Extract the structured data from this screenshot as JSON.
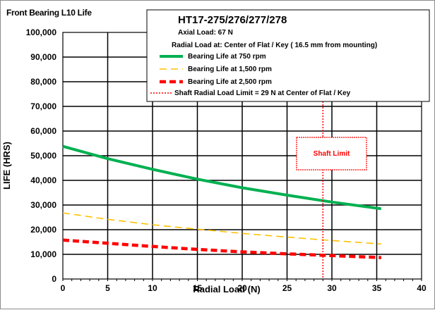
{
  "chart_data": {
    "type": "line",
    "title": "Front Bearing L10 Life",
    "xlabel": "Radial Load (N)",
    "ylabel": "LIFE (HRS)",
    "xlim": [
      0,
      40
    ],
    "ylim": [
      0,
      100000
    ],
    "x_ticks": [
      "0",
      "5",
      "10",
      "15",
      "20",
      "25",
      "30",
      "35",
      "40"
    ],
    "y_ticks": [
      "0",
      "10,000",
      "20,000",
      "30,000",
      "40,000",
      "50,000",
      "60,000",
      "70,000",
      "80,000",
      "90,000",
      "100,000"
    ],
    "grid": true,
    "legend_position": "top-right",
    "legend_header": {
      "model": "HT17-275/276/277/278",
      "axial_load": "Axial Load:  67  N",
      "radial_load": "Radial Load at:  Center of Flat / Key  ( 16.5 mm from mounting)"
    },
    "series": [
      {
        "name": "Bearing Life at 750 rpm",
        "color": "#00b050",
        "style": "solid",
        "x": [
          0,
          5,
          10,
          15,
          20,
          25,
          30,
          35.5
        ],
        "y": [
          53800,
          48800,
          44500,
          40500,
          37000,
          34000,
          31200,
          28500
        ]
      },
      {
        "name": "Bearing Life at 1,500 rpm",
        "color": "#ffc000",
        "style": "dashed",
        "x": [
          0,
          5,
          10,
          15,
          20,
          25,
          30,
          35.5
        ],
        "y": [
          26800,
          24200,
          22000,
          20200,
          18500,
          17000,
          15600,
          14200
        ]
      },
      {
        "name": "Bearing Life at 2,500 rpm",
        "color": "#ff0000",
        "style": "heavy-dashed",
        "x": [
          0,
          5,
          10,
          15,
          20,
          25,
          30,
          35.5
        ],
        "y": [
          15800,
          14500,
          13200,
          12000,
          11000,
          10200,
          9500,
          8700
        ]
      }
    ],
    "limit": {
      "name": "Shaft Radial Load Limit  =  29 N at Center of Flat / Key",
      "color": "#ff0000",
      "style": "dotted",
      "x": 29,
      "label": "Shaft Limit"
    }
  }
}
